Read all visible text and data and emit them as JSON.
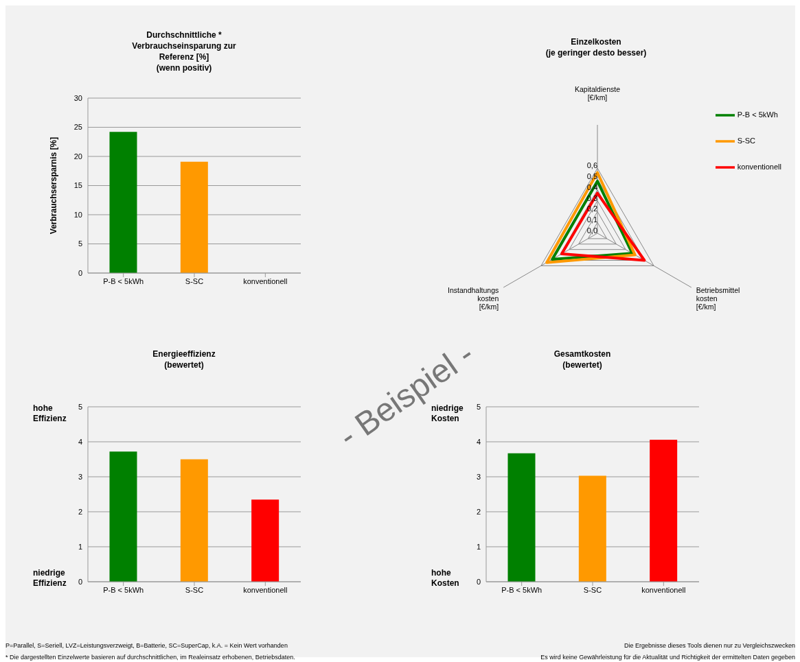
{
  "chart_data": [
    {
      "type": "bar",
      "title": "Durchschnittliche *\nVerbrauchseinsparung zur\nReferenz [%]\n(wenn positiv)",
      "ylabel": "Verbrauchsersparnis [%]",
      "categories": [
        "P-B < 5kWh",
        "S-SC",
        "konventionell"
      ],
      "values": [
        24.2,
        19.1,
        0
      ],
      "colors": [
        "#008000",
        "#ff9900",
        "#ff0000"
      ],
      "ylim": [
        0,
        30
      ],
      "yticks": [
        0,
        5,
        10,
        15,
        20,
        25,
        30
      ],
      "grid": "y"
    },
    {
      "type": "radar",
      "title": "Einzelkosten\n(je geringer desto besser)",
      "categories": [
        "Kapitaldienste\n[€/km]",
        "Betriebsmittel\nkosten\n[€/km]",
        "Instandhaltungs\nkosten\n[€/km]"
      ],
      "series": [
        {
          "name": "P-B < 5kWh",
          "color": "#008000",
          "values": [
            0.48,
            0.37,
            0.48
          ]
        },
        {
          "name": "S-SC",
          "color": "#ff9900",
          "values": [
            0.56,
            0.4,
            0.54
          ]
        },
        {
          "name": "konventionell",
          "color": "#ff0000",
          "values": [
            0.37,
            0.5,
            0.38
          ]
        }
      ],
      "ylim": [
        0,
        0.6
      ],
      "yticks": [
        {
          "value": 0,
          "label": "0,0"
        },
        {
          "value": 0.1,
          "label": "0,1"
        },
        {
          "value": 0.2,
          "label": "0,2"
        },
        {
          "value": 0.3,
          "label": "0,3"
        },
        {
          "value": 0.4,
          "label": "0,4"
        },
        {
          "value": 0.5,
          "label": "0,5"
        },
        {
          "value": 0.6,
          "label": "0,6"
        }
      ],
      "grid": true,
      "legend": "top right"
    },
    {
      "type": "bar",
      "title": "Energieeffizienz\n(bewertet)",
      "categories": [
        "P-B < 5kWh",
        "S-SC",
        "konventionell"
      ],
      "values": [
        3.72,
        3.5,
        2.35
      ],
      "colors": [
        "#008000",
        "#ff9900",
        "#ff0000"
      ],
      "ylim": [
        0,
        5
      ],
      "yticks": [
        0,
        1,
        2,
        3,
        4,
        5
      ],
      "grid": "y",
      "annotations": [
        "hohe\nEffizienz",
        "niedrige\nEffizienz",
        "P=Parallel, S=Seriell, LVZ=Leistungsverzweigt, B=Batterie, SC=SuperCap, k.A. = Kein Wert vorhanden",
        "* Die dargestellten Einzelwerte basieren auf durchschnittlichen, im Realeinsatz erhobenen, Betriebsdaten."
      ]
    },
    {
      "type": "bar",
      "title": "Gesamtkosten\n(bewertet)",
      "categories": [
        "P-B < 5kWh",
        "S-SC",
        "konventionell"
      ],
      "values": [
        3.67,
        3.03,
        4.06
      ],
      "colors": [
        "#008000",
        "#ff9900",
        "#ff0000"
      ],
      "ylim": [
        0,
        5
      ],
      "yticks": [
        0,
        1,
        2,
        3,
        4,
        5
      ],
      "grid": "y",
      "annotations": [
        "niedrige\nKosten",
        "hohe\nKosten",
        "Die Ergebnisse dieses Tools dienen nur zu Vergleichszwecken",
        "Es wird keine Gewährleistung für die Aktualität und Richtigkeit der ermittelten Daten gegeben",
        "- Beispiel -"
      ]
    }
  ]
}
